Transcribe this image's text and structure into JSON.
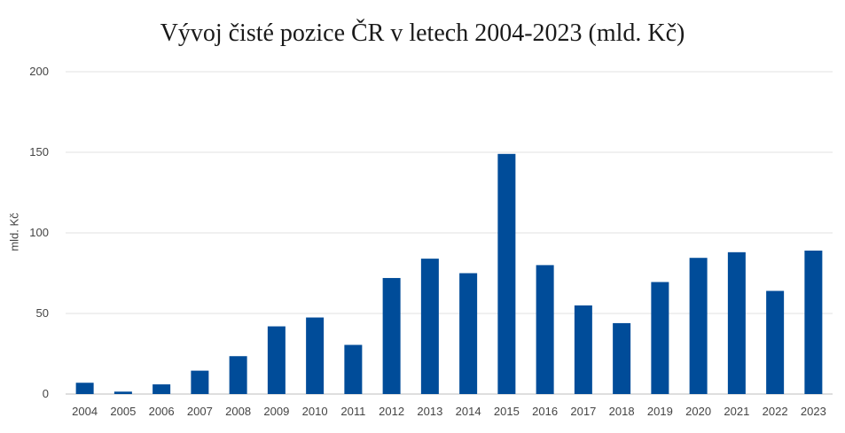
{
  "chart_data": {
    "type": "bar",
    "title": "Vývoj čisté pozice ČR v letech 2004-2023 (mld. Kč)",
    "xlabel": "",
    "ylabel": "mld. Kč",
    "ylim": [
      0,
      200
    ],
    "yticks": [
      0,
      50,
      100,
      150,
      200
    ],
    "grid": true,
    "bar_color": "#004c99",
    "categories": [
      "2004",
      "2005",
      "2006",
      "2007",
      "2008",
      "2009",
      "2010",
      "2011",
      "2012",
      "2013",
      "2014",
      "2015",
      "2016",
      "2017",
      "2018",
      "2019",
      "2020",
      "2021",
      "2022",
      "2023"
    ],
    "values": [
      7,
      1.5,
      6,
      14.5,
      23.5,
      42,
      47.5,
      30.5,
      72,
      84,
      75,
      149,
      80,
      55,
      44,
      69.5,
      84.5,
      88,
      64,
      89
    ]
  }
}
